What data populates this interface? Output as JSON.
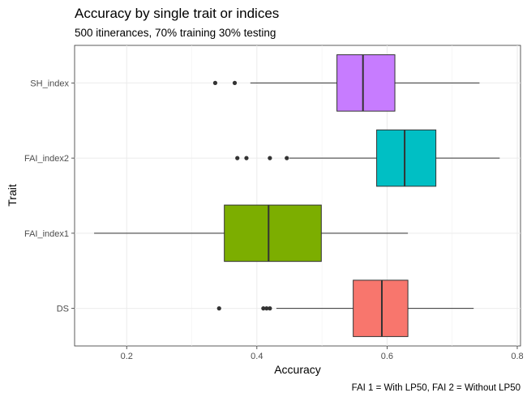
{
  "chart_data": {
    "type": "boxplot",
    "orientation": "horizontal",
    "title": "Accuracy by single trait or indices",
    "subtitle": "500 itinerances, 70% training 30% testing",
    "xlabel": "Accuracy",
    "ylabel": "Trait",
    "caption": "FAI 1 = With LP50, FAI 2 = Without LP50",
    "xlim": [
      0.12,
      0.805
    ],
    "x_ticks": [
      {
        "value": 0.2,
        "label": "0.2"
      },
      {
        "value": 0.4,
        "label": "0.4"
      },
      {
        "value": 0.6,
        "label": "0.6"
      },
      {
        "value": 0.8,
        "label": "0.8"
      }
    ],
    "grid": true,
    "legend": "none",
    "categories": [
      "DS",
      "FAI_index1",
      "FAI_index2",
      "SH_index"
    ],
    "boxes": [
      {
        "category": "DS",
        "color": "#F8766D",
        "whisker_low": 0.43,
        "q1": 0.548,
        "median": 0.592,
        "q3": 0.632,
        "whisker_high": 0.733,
        "outliers": [
          0.342,
          0.41,
          0.415,
          0.42
        ]
      },
      {
        "category": "FAI_index1",
        "color": "#7CAE00",
        "whisker_low": 0.15,
        "q1": 0.35,
        "median": 0.418,
        "q3": 0.499,
        "whisker_high": 0.632,
        "outliers": []
      },
      {
        "category": "FAI_index2",
        "color": "#00BFC4",
        "whisker_low": 0.45,
        "q1": 0.584,
        "median": 0.627,
        "q3": 0.675,
        "whisker_high": 0.773,
        "outliers": [
          0.37,
          0.384,
          0.42,
          0.446
        ]
      },
      {
        "category": "SH_index",
        "color": "#C77CFF",
        "whisker_low": 0.39,
        "q1": 0.523,
        "median": 0.563,
        "q3": 0.612,
        "whisker_high": 0.742,
        "outliers": [
          0.336,
          0.366
        ]
      }
    ]
  }
}
